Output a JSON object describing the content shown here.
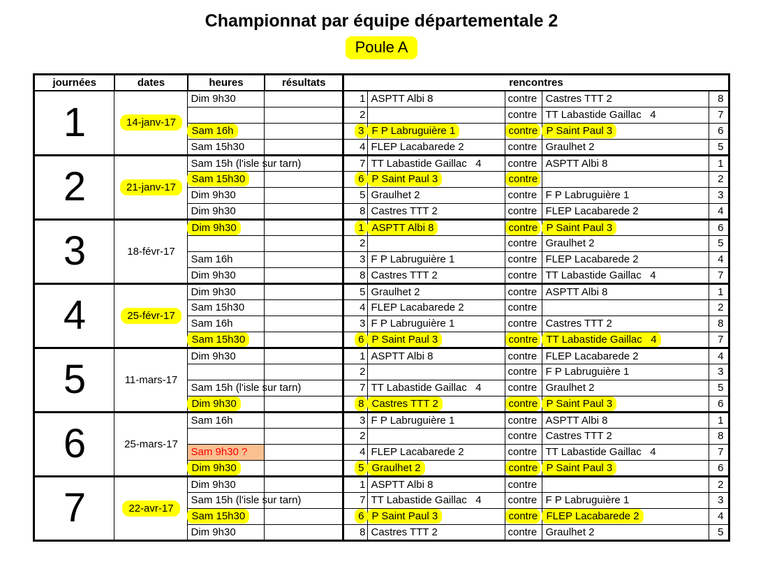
{
  "page": {
    "title": "Championnat par équipe départementale 2",
    "subtitle": "Poule A"
  },
  "table": {
    "headers": {
      "journees": "journées",
      "dates": "dates",
      "heures": "heures",
      "resultats": "résultats",
      "rencontres": "rencontres"
    },
    "vs_label": "contre",
    "colors": {
      "highlight": "#ffff00",
      "warn_bg": "#fac090",
      "warn_text": "#ff0000"
    },
    "journees": [
      {
        "num": "1",
        "date": "14-janv-17",
        "date_hl": true,
        "rows": [
          {
            "time": "Dim 9h30",
            "time_hl": false,
            "time_warn": false,
            "result": "",
            "n1": "1",
            "t1": "ASPTT Albi 8",
            "t2": "Castres TTT 2",
            "n2": "8",
            "match_hl": false
          },
          {
            "time": "",
            "time_hl": false,
            "time_warn": false,
            "result": "",
            "n1": "2",
            "t1": "",
            "t2": "TT Labastide Gaillac   4",
            "n2": "7",
            "match_hl": false
          },
          {
            "time": "Sam 16h",
            "time_hl": true,
            "time_warn": false,
            "result": "",
            "n1": "3",
            "t1": "F P Labruguière 1",
            "t2": "P Saint Paul 3",
            "n2": "6",
            "match_hl": true
          },
          {
            "time": "Sam 15h30",
            "time_hl": false,
            "time_warn": false,
            "result": "",
            "n1": "4",
            "t1": "FLEP Lacabarede 2",
            "t2": "Graulhet 2",
            "n2": "5",
            "match_hl": false
          }
        ]
      },
      {
        "num": "2",
        "date": "21-janv-17",
        "date_hl": true,
        "rows": [
          {
            "time": "Sam 15h (l'isle sur tarn)",
            "time_hl": false,
            "time_warn": false,
            "result": "",
            "n1": "7",
            "t1": "TT Labastide Gaillac   4",
            "t2": "ASPTT Albi 8",
            "n2": "1",
            "match_hl": false
          },
          {
            "time": "Sam 15h30",
            "time_hl": true,
            "time_warn": false,
            "result": "",
            "n1": "6",
            "t1": "P Saint Paul 3",
            "t2": "",
            "n2": "2",
            "match_hl": true
          },
          {
            "time": "Dim 9h30",
            "time_hl": false,
            "time_warn": false,
            "result": "",
            "n1": "5",
            "t1": "Graulhet 2",
            "t2": "F P Labruguière 1",
            "n2": "3",
            "match_hl": false
          },
          {
            "time": "Dim 9h30",
            "time_hl": false,
            "time_warn": false,
            "result": "",
            "n1": "8",
            "t1": "Castres TTT 2",
            "t2": "FLEP Lacabarede 2",
            "n2": "4",
            "match_hl": false
          }
        ]
      },
      {
        "num": "3",
        "date": "18-févr-17",
        "date_hl": false,
        "rows": [
          {
            "time": "Dim 9h30",
            "time_hl": true,
            "time_warn": false,
            "result": "",
            "n1": "1",
            "t1": "ASPTT Albi 8",
            "t2": "P Saint Paul 3",
            "n2": "6",
            "match_hl": true
          },
          {
            "time": "",
            "time_hl": false,
            "time_warn": false,
            "result": "",
            "n1": "2",
            "t1": "",
            "t2": "Graulhet 2",
            "n2": "5",
            "match_hl": false
          },
          {
            "time": "Sam 16h",
            "time_hl": false,
            "time_warn": false,
            "result": "",
            "n1": "3",
            "t1": "F P Labruguière 1",
            "t2": "FLEP Lacabarede 2",
            "n2": "4",
            "match_hl": false
          },
          {
            "time": "Dim 9h30",
            "time_hl": false,
            "time_warn": false,
            "result": "",
            "n1": "8",
            "t1": "Castres TTT 2",
            "t2": "TT Labastide Gaillac   4",
            "n2": "7",
            "match_hl": false
          }
        ]
      },
      {
        "num": "4",
        "date": "25-févr-17",
        "date_hl": true,
        "rows": [
          {
            "time": "Dim 9h30",
            "time_hl": false,
            "time_warn": false,
            "result": "",
            "n1": "5",
            "t1": "Graulhet 2",
            "t2": "ASPTT Albi 8",
            "n2": "1",
            "match_hl": false
          },
          {
            "time": "Sam 15h30",
            "time_hl": false,
            "time_warn": false,
            "result": "",
            "n1": "4",
            "t1": "FLEP Lacabarede 2",
            "t2": "",
            "n2": "2",
            "match_hl": false
          },
          {
            "time": "Sam 16h",
            "time_hl": false,
            "time_warn": false,
            "result": "",
            "n1": "3",
            "t1": "F P Labruguière 1",
            "t2": "Castres TTT 2",
            "n2": "8",
            "match_hl": false
          },
          {
            "time": "Sam 15h30",
            "time_hl": true,
            "time_warn": false,
            "result": "",
            "n1": "6",
            "t1": "P Saint Paul 3",
            "t2": "TT Labastide Gaillac   4",
            "n2": "7",
            "match_hl": true
          }
        ]
      },
      {
        "num": "5",
        "date": "11-mars-17",
        "date_hl": false,
        "rows": [
          {
            "time": "Dim 9h30",
            "time_hl": false,
            "time_warn": false,
            "result": "",
            "n1": "1",
            "t1": "ASPTT Albi 8",
            "t2": "FLEP Lacabarede 2",
            "n2": "4",
            "match_hl": false
          },
          {
            "time": "",
            "time_hl": false,
            "time_warn": false,
            "result": "",
            "n1": "2",
            "t1": "",
            "t2": "F P Labruguière 1",
            "n2": "3",
            "match_hl": false
          },
          {
            "time": "Sam 15h (l'isle sur tarn)",
            "time_hl": false,
            "time_warn": false,
            "result": "",
            "n1": "7",
            "t1": "TT Labastide Gaillac   4",
            "t2": "Graulhet 2",
            "n2": "5",
            "match_hl": false
          },
          {
            "time": "Dim 9h30",
            "time_hl": true,
            "time_warn": false,
            "result": "",
            "n1": "8",
            "t1": "Castres TTT 2",
            "t2": "P Saint Paul 3",
            "n2": "6",
            "match_hl": true
          }
        ]
      },
      {
        "num": "6",
        "date": "25-mars-17",
        "date_hl": false,
        "rows": [
          {
            "time": "Sam 16h",
            "time_hl": false,
            "time_warn": false,
            "result": "",
            "n1": "3",
            "t1": "F P Labruguière 1",
            "t2": "ASPTT Albi 8",
            "n2": "1",
            "match_hl": false
          },
          {
            "time": "",
            "time_hl": false,
            "time_warn": false,
            "result": "",
            "n1": "2",
            "t1": "",
            "t2": "Castres TTT 2",
            "n2": "8",
            "match_hl": false
          },
          {
            "time": "Sam 9h30 ?",
            "time_hl": false,
            "time_warn": true,
            "result": "",
            "n1": "4",
            "t1": "FLEP Lacabarede 2",
            "t2": "TT Labastide Gaillac   4",
            "n2": "7",
            "match_hl": false
          },
          {
            "time": "Dim 9h30",
            "time_hl": true,
            "time_warn": false,
            "result": "",
            "n1": "5",
            "t1": "Graulhet 2",
            "t2": "P Saint Paul 3",
            "n2": "6",
            "match_hl": true
          }
        ]
      },
      {
        "num": "7",
        "date": "22-avr-17",
        "date_hl": true,
        "rows": [
          {
            "time": "Dim 9h30",
            "time_hl": false,
            "time_warn": false,
            "result": "",
            "n1": "1",
            "t1": "ASPTT Albi 8",
            "t2": "",
            "n2": "2",
            "match_hl": false
          },
          {
            "time": "Sam 15h (l'isle sur tarn)",
            "time_hl": false,
            "time_warn": false,
            "result": "",
            "n1": "7",
            "t1": "TT Labastide Gaillac   4",
            "t2": "F P Labruguière 1",
            "n2": "3",
            "match_hl": false
          },
          {
            "time": "Sam 15h30",
            "time_hl": true,
            "time_warn": false,
            "result": "",
            "n1": "6",
            "t1": "P Saint Paul 3",
            "t2": "FLEP Lacabarede 2",
            "n2": "4",
            "match_hl": true
          },
          {
            "time": "Dim 9h30",
            "time_hl": false,
            "time_warn": false,
            "result": "",
            "n1": "8",
            "t1": "Castres TTT 2",
            "t2": "Graulhet 2",
            "n2": "5",
            "match_hl": false
          }
        ]
      }
    ]
  }
}
